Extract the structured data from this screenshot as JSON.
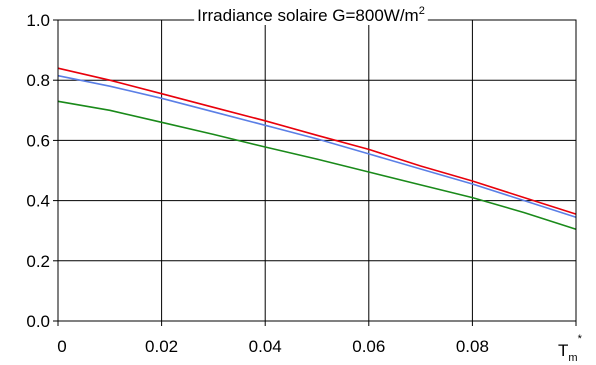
{
  "chart_data": {
    "type": "line",
    "title": {
      "text": "Irradiance solaire G=800W/m",
      "superscript": "2"
    },
    "x_unit_label": {
      "base": "T",
      "subscript": "m",
      "superscript": "*"
    },
    "xlim": [
      0,
      0.1
    ],
    "ylim": [
      0,
      1.0
    ],
    "x_ticks": [
      "0",
      "0.02",
      "0.04",
      "0.06",
      "0.08"
    ],
    "y_ticks": [
      "0.0",
      "0.2",
      "0.4",
      "0.6",
      "0.8",
      "1.0"
    ],
    "grid": true,
    "colors": {
      "grid": "#000000",
      "series_red": "#e8000b",
      "series_blue": "#5b7fe6",
      "series_green": "#1a8a1a"
    },
    "series": [
      {
        "color": "#e8000b",
        "x": [
          0,
          0.01,
          0.02,
          0.03,
          0.04,
          0.05,
          0.06,
          0.07,
          0.08,
          0.09,
          0.1
        ],
        "y": [
          0.84,
          0.8,
          0.755,
          0.71,
          0.665,
          0.617,
          0.57,
          0.515,
          0.465,
          0.41,
          0.355
        ]
      },
      {
        "color": "#5b7fe6",
        "x": [
          0,
          0.01,
          0.02,
          0.03,
          0.04,
          0.05,
          0.06,
          0.07,
          0.08,
          0.09,
          0.1
        ],
        "y": [
          0.815,
          0.78,
          0.74,
          0.695,
          0.65,
          0.605,
          0.555,
          0.505,
          0.455,
          0.4,
          0.345
        ]
      },
      {
        "color": "#1a8a1a",
        "x": [
          0,
          0.01,
          0.02,
          0.03,
          0.04,
          0.05,
          0.06,
          0.07,
          0.08,
          0.09,
          0.1
        ],
        "y": [
          0.73,
          0.7,
          0.66,
          0.62,
          0.578,
          0.538,
          0.495,
          0.452,
          0.41,
          0.36,
          0.305
        ]
      }
    ]
  }
}
